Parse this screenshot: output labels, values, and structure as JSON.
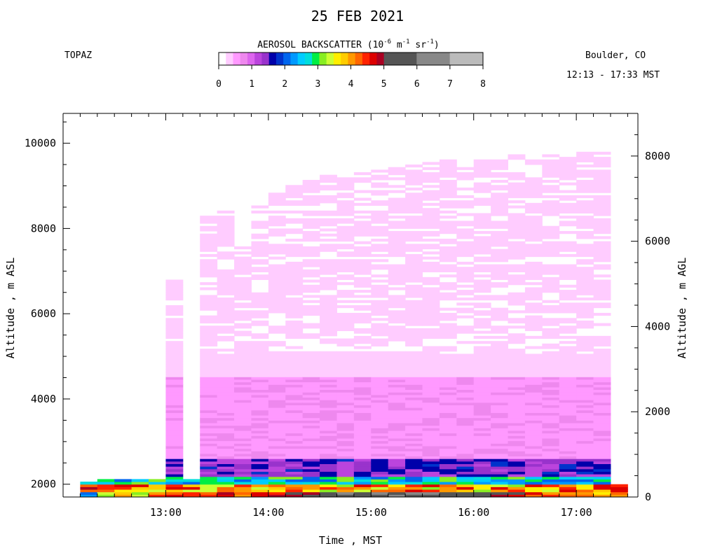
{
  "chart_data": {
    "type": "heatmap",
    "title": "25 FEB 2021",
    "instrument": "TOPAZ",
    "location": "Boulder, CO",
    "time_range": "12:13 - 17:33 MST",
    "colorbar_label": "AEROSOL BACKSCATTER (10",
    "colorbar_exp1": "-6",
    "colorbar_mid1": " m",
    "colorbar_exp2": "-1",
    "colorbar_mid2": " sr",
    "colorbar_exp3": "-1",
    "colorbar_end": ")",
    "colorbar_ticks": [
      "0",
      "1",
      "2",
      "3",
      "4",
      "5",
      "6",
      "7",
      "8"
    ],
    "colorbar_range": [
      0,
      8
    ],
    "colorbar_colors": [
      "#ffffff",
      "#ffccff",
      "#ff99ff",
      "#ee88ee",
      "#dd66ee",
      "#bb44dd",
      "#9933cc",
      "#0000aa",
      "#0033cc",
      "#0066ee",
      "#0099ff",
      "#00ccff",
      "#00dddd",
      "#00ee44",
      "#88ee22",
      "#ccff33",
      "#ffee00",
      "#ffcc00",
      "#ff9900",
      "#ff6600",
      "#ff2200",
      "#dd0000",
      "#aa0022",
      "#555555",
      "#888888",
      "#bbbbbb"
    ],
    "xlabel": "Time , MST",
    "ylabel_left": "Altitude , m ASL",
    "ylabel_right": "Altitude , m AGL",
    "x_ticks": [
      "13:00",
      "14:00",
      "15:00",
      "16:00",
      "17:00"
    ],
    "x_range": [
      "12:13",
      "17:33"
    ],
    "y_ticks_left": [
      "2000",
      "4000",
      "6000",
      "8000",
      "10000"
    ],
    "y_ticks_right": [
      "0",
      "2000",
      "4000",
      "6000",
      "8000"
    ],
    "ylim_left": [
      1700,
      10700
    ],
    "ylim_right": [
      0,
      9000
    ],
    "profiles": [
      {
        "start": "12:13",
        "end": "12:23",
        "top": 2050,
        "bottom": 1700,
        "max_backscatter": 2.4
      },
      {
        "start": "12:23",
        "end": "12:33",
        "top": 2150,
        "bottom": 1700,
        "max_backscatter": 3.5
      },
      {
        "start": "12:33",
        "end": "12:43",
        "top": 2150,
        "bottom": 1700,
        "max_backscatter": 4.2
      },
      {
        "start": "12:43",
        "end": "12:53",
        "top": 2150,
        "bottom": 1700,
        "max_backscatter": 3.5
      },
      {
        "start": "12:53",
        "end": "13:03",
        "top": 2150,
        "bottom": 1700,
        "max_backscatter": 4.5
      },
      {
        "start": "13:03",
        "end": "13:13",
        "top": 6800,
        "bottom": 1700,
        "max_backscatter": 4.9
      },
      {
        "start": "13:13",
        "end": "13:23",
        "top": 2080,
        "bottom": 1700,
        "max_backscatter": 4.9
      },
      {
        "start": "13:23",
        "end": "13:33",
        "top": 8250,
        "bottom": 1700,
        "max_backscatter": 4.8
      },
      {
        "start": "13:33",
        "end": "13:43",
        "top": 8400,
        "bottom": 1700,
        "max_backscatter": 4.8
      },
      {
        "start": "13:43",
        "end": "13:53",
        "top": 7600,
        "bottom": 1700,
        "max_backscatter": 4.6
      },
      {
        "start": "13:53",
        "end": "14:03",
        "top": 8500,
        "bottom": 1700,
        "max_backscatter": 4.9
      },
      {
        "start": "14:03",
        "end": "14:13",
        "top": 8800,
        "bottom": 1700,
        "max_backscatter": 4.9
      },
      {
        "start": "14:13",
        "end": "14:23",
        "top": 9000,
        "bottom": 1700,
        "max_backscatter": 5.3
      },
      {
        "start": "14:23",
        "end": "14:33",
        "top": 9100,
        "bottom": 1700,
        "max_backscatter": 5.6
      },
      {
        "start": "14:33",
        "end": "14:43",
        "top": 9250,
        "bottom": 1700,
        "max_backscatter": 5.8
      },
      {
        "start": "14:43",
        "end": "14:53",
        "top": 9200,
        "bottom": 1700,
        "max_backscatter": 6.1
      },
      {
        "start": "14:53",
        "end": "15:03",
        "top": 9300,
        "bottom": 1700,
        "max_backscatter": 6.4
      },
      {
        "start": "15:03",
        "end": "15:13",
        "top": 9350,
        "bottom": 1700,
        "max_backscatter": 6.4
      },
      {
        "start": "15:13",
        "end": "15:23",
        "top": 9400,
        "bottom": 1700,
        "max_backscatter": 6.2
      },
      {
        "start": "15:23",
        "end": "15:33",
        "top": 9500,
        "bottom": 1700,
        "max_backscatter": 6.3
      },
      {
        "start": "15:33",
        "end": "15:43",
        "top": 9550,
        "bottom": 1700,
        "max_backscatter": 6.2
      },
      {
        "start": "15:43",
        "end": "15:53",
        "top": 9600,
        "bottom": 1700,
        "max_backscatter": 6.0
      },
      {
        "start": "15:53",
        "end": "16:03",
        "top": 9650,
        "bottom": 1700,
        "max_backscatter": 5.9
      },
      {
        "start": "16:03",
        "end": "16:13",
        "top": 9650,
        "bottom": 1700,
        "max_backscatter": 5.6
      },
      {
        "start": "16:13",
        "end": "16:23",
        "top": 9600,
        "bottom": 1700,
        "max_backscatter": 5.4
      },
      {
        "start": "16:23",
        "end": "16:33",
        "top": 9700,
        "bottom": 1700,
        "max_backscatter": 5.2
      },
      {
        "start": "16:33",
        "end": "16:43",
        "top": 9650,
        "bottom": 1700,
        "max_backscatter": 4.9
      },
      {
        "start": "16:43",
        "end": "16:53",
        "top": 9700,
        "bottom": 1700,
        "max_backscatter": 4.7
      },
      {
        "start": "16:53",
        "end": "17:03",
        "top": 9650,
        "bottom": 1700,
        "max_backscatter": 4.5
      },
      {
        "start": "17:03",
        "end": "17:13",
        "top": 9750,
        "bottom": 1700,
        "max_backscatter": 4.3
      },
      {
        "start": "17:13",
        "end": "17:23",
        "top": 9750,
        "bottom": 1700,
        "max_backscatter": 4.1
      },
      {
        "start": "17:23",
        "end": "17:33",
        "top": 2000,
        "bottom": 1700,
        "max_backscatter": 4.6
      }
    ]
  }
}
